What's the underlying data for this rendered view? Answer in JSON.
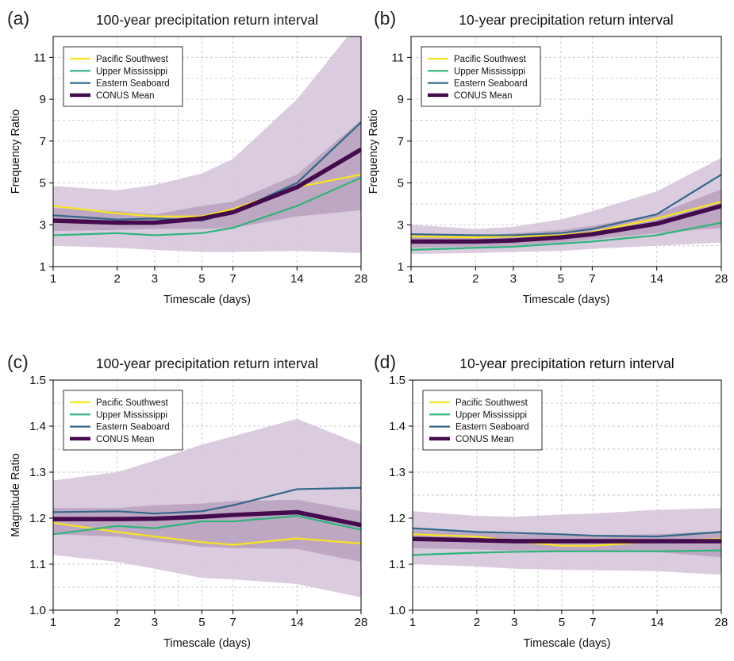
{
  "colors": {
    "pacific_southwest": "#F7E51F",
    "upper_mississippi": "#2DB57A",
    "eastern_seaboard": "#32688A",
    "conus_mean": "#440B4F",
    "band_outer": "#D9C8DD",
    "band_inner": "#B49BB8",
    "grid": "#C8C8C8"
  },
  "chart_data": [
    {
      "type": "line",
      "panel_label": "(a)",
      "title": "100-year precipitation return interval",
      "xlabel": "Timescale (days)",
      "ylabel": "Frequency Ratio",
      "x_scale": "log",
      "x_ticks": [
        1,
        2,
        3,
        5,
        7,
        14,
        28
      ],
      "x_tick_labels": [
        "1",
        "2",
        "3",
        "5",
        "7",
        "14",
        "28"
      ],
      "ylim": [
        1,
        12
      ],
      "y_ticks": [
        1,
        3,
        5,
        7,
        9,
        11
      ],
      "y_tick_labels": [
        "1",
        "3",
        "5",
        "7",
        "9",
        "11"
      ],
      "grid": true,
      "legend_position": "top-left",
      "x": [
        1,
        2,
        3,
        5,
        7,
        14,
        28
      ],
      "bands": [
        {
          "role": "outer",
          "lower": [
            2.0,
            1.9,
            1.8,
            1.7,
            1.7,
            1.75,
            1.65
          ],
          "upper": [
            4.85,
            4.65,
            4.9,
            5.45,
            6.15,
            9.0,
            12.8
          ]
        },
        {
          "role": "inner",
          "lower": [
            2.7,
            2.75,
            2.8,
            2.8,
            2.85,
            3.4,
            3.7
          ],
          "upper": [
            3.8,
            3.65,
            3.5,
            3.9,
            4.1,
            5.4,
            8.0
          ]
        }
      ],
      "series": [
        {
          "name": "Pacific Southwest",
          "values": [
            3.9,
            3.55,
            3.4,
            3.4,
            3.75,
            4.8,
            5.4
          ]
        },
        {
          "name": "Upper Mississippi",
          "values": [
            2.5,
            2.6,
            2.5,
            2.6,
            2.85,
            3.9,
            5.25
          ]
        },
        {
          "name": "Eastern Seaboard",
          "values": [
            3.45,
            3.25,
            3.3,
            3.2,
            3.6,
            5.0,
            7.9
          ]
        },
        {
          "name": "CONUS Mean",
          "values": [
            3.2,
            3.1,
            3.1,
            3.3,
            3.6,
            4.8,
            6.6
          ]
        }
      ]
    },
    {
      "type": "line",
      "panel_label": "(b)",
      "title": "10-year precipitation return interval",
      "xlabel": "Timescale (days)",
      "ylabel": "Frequency Ratio",
      "x_scale": "log",
      "x_ticks": [
        1,
        2,
        3,
        5,
        7,
        14,
        28
      ],
      "x_tick_labels": [
        "1",
        "2",
        "3",
        "5",
        "7",
        "14",
        "28"
      ],
      "ylim": [
        1,
        12
      ],
      "y_ticks": [
        1,
        3,
        5,
        7,
        9,
        11
      ],
      "y_tick_labels": [
        "1",
        "3",
        "5",
        "7",
        "9",
        "11"
      ],
      "grid": true,
      "legend_position": "top-left",
      "x": [
        1,
        2,
        3,
        5,
        7,
        14,
        28
      ],
      "bands": [
        {
          "role": "outer",
          "lower": [
            1.6,
            1.65,
            1.7,
            1.75,
            1.85,
            2.0,
            2.15
          ],
          "upper": [
            3.0,
            2.8,
            2.9,
            3.25,
            3.65,
            4.6,
            6.2
          ]
        },
        {
          "role": "inner",
          "lower": [
            1.9,
            1.95,
            2.0,
            2.15,
            2.3,
            2.6,
            2.85
          ],
          "upper": [
            2.55,
            2.45,
            2.6,
            2.75,
            2.95,
            3.5,
            4.7
          ]
        }
      ],
      "series": [
        {
          "name": "Pacific Southwest",
          "values": [
            2.45,
            2.4,
            2.45,
            2.5,
            2.65,
            3.3,
            4.1
          ]
        },
        {
          "name": "Upper Mississippi",
          "values": [
            1.8,
            1.9,
            1.95,
            2.1,
            2.2,
            2.5,
            3.1
          ]
        },
        {
          "name": "Eastern Seaboard",
          "values": [
            2.55,
            2.5,
            2.5,
            2.6,
            2.8,
            3.5,
            5.4
          ]
        },
        {
          "name": "CONUS Mean",
          "values": [
            2.2,
            2.2,
            2.25,
            2.4,
            2.55,
            3.05,
            3.9
          ]
        }
      ]
    },
    {
      "type": "line",
      "panel_label": "(c)",
      "title": "100-year precipitation return interval",
      "xlabel": "Timescale (days)",
      "ylabel": "Magnitude Ratio",
      "x_scale": "log",
      "x_ticks": [
        1,
        2,
        3,
        5,
        7,
        14,
        28
      ],
      "x_tick_labels": [
        "1",
        "2",
        "3",
        "5",
        "7",
        "14",
        "28"
      ],
      "ylim": [
        1.0,
        1.5
      ],
      "y_ticks": [
        1.0,
        1.1,
        1.2,
        1.3,
        1.4,
        1.5
      ],
      "y_tick_labels": [
        "1.0",
        "1.1",
        "1.2",
        "1.3",
        "1.4",
        "1.5"
      ],
      "grid": true,
      "legend_position": "top-left",
      "x": [
        1,
        2,
        3,
        5,
        7,
        14,
        28
      ],
      "bands": [
        {
          "role": "outer",
          "lower": [
            1.12,
            1.105,
            1.09,
            1.07,
            1.067,
            1.057,
            1.028
          ],
          "upper": [
            1.282,
            1.3,
            1.325,
            1.36,
            1.378,
            1.416,
            1.36
          ]
        },
        {
          "role": "inner",
          "lower": [
            1.165,
            1.16,
            1.15,
            1.138,
            1.135,
            1.133,
            1.105
          ],
          "upper": [
            1.222,
            1.222,
            1.228,
            1.232,
            1.237,
            1.24,
            1.215
          ]
        }
      ],
      "series": [
        {
          "name": "Pacific Southwest",
          "values": [
            1.19,
            1.17,
            1.16,
            1.148,
            1.142,
            1.156,
            1.145
          ]
        },
        {
          "name": "Upper Mississippi",
          "values": [
            1.165,
            1.183,
            1.178,
            1.193,
            1.193,
            1.205,
            1.175
          ]
        },
        {
          "name": "Eastern Seaboard",
          "values": [
            1.213,
            1.215,
            1.21,
            1.215,
            1.228,
            1.263,
            1.266
          ]
        },
        {
          "name": "CONUS Mean",
          "values": [
            1.198,
            1.198,
            1.199,
            1.203,
            1.207,
            1.213,
            1.185
          ]
        }
      ]
    },
    {
      "type": "line",
      "panel_label": "(d)",
      "title": "10-year precipitation return interval",
      "xlabel": "Timescale (days)",
      "ylabel": "",
      "x_scale": "log",
      "x_ticks": [
        1,
        2,
        3,
        5,
        7,
        14,
        28
      ],
      "x_tick_labels": [
        "1",
        "2",
        "3",
        "5",
        "7",
        "14",
        "28"
      ],
      "ylim": [
        1.0,
        1.5
      ],
      "y_ticks": [
        1.0,
        1.1,
        1.2,
        1.3,
        1.4,
        1.5
      ],
      "y_tick_labels": [
        "1.0",
        "1.1",
        "1.2",
        "1.3",
        "1.4",
        "1.5"
      ],
      "grid": true,
      "legend_position": "top-left",
      "x": [
        1,
        2,
        3,
        5,
        7,
        14,
        28
      ],
      "bands": [
        {
          "role": "outer",
          "lower": [
            1.1,
            1.095,
            1.09,
            1.088,
            1.087,
            1.085,
            1.077
          ],
          "upper": [
            1.215,
            1.205,
            1.203,
            1.208,
            1.21,
            1.218,
            1.222
          ]
        },
        {
          "role": "inner",
          "lower": [
            1.135,
            1.132,
            1.13,
            1.13,
            1.128,
            1.126,
            1.115
          ],
          "upper": [
            1.175,
            1.168,
            1.165,
            1.165,
            1.163,
            1.165,
            1.172
          ]
        }
      ],
      "series": [
        {
          "name": "Pacific Southwest",
          "values": [
            1.165,
            1.16,
            1.15,
            1.14,
            1.14,
            1.15,
            1.155
          ]
        },
        {
          "name": "Upper Mississippi",
          "values": [
            1.12,
            1.125,
            1.127,
            1.128,
            1.128,
            1.128,
            1.13
          ]
        },
        {
          "name": "Eastern Seaboard",
          "values": [
            1.178,
            1.17,
            1.168,
            1.165,
            1.162,
            1.16,
            1.17
          ]
        },
        {
          "name": "CONUS Mean",
          "values": [
            1.155,
            1.152,
            1.15,
            1.15,
            1.15,
            1.15,
            1.15
          ]
        }
      ]
    }
  ]
}
